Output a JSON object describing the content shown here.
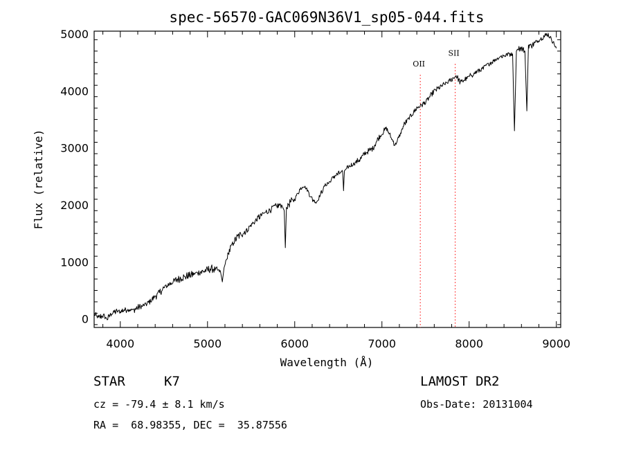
{
  "chart_data": {
    "type": "line",
    "title": "spec-56570-GAC069N36V1_sp05-044.fits",
    "xlabel": "Wavelength (Å)",
    "ylabel": "Flux (relative)",
    "xlim": [
      3700,
      9050
    ],
    "ylim": [
      -150,
      5050
    ],
    "xticks": [
      4000,
      5000,
      6000,
      7000,
      8000,
      9000
    ],
    "yticks": [
      0,
      1000,
      2000,
      3000,
      4000,
      5000
    ],
    "grid": false,
    "legend": "none",
    "line_color": "#000000",
    "marker_color": "#ff0000",
    "series": [
      {
        "x": [
          3700,
          3750,
          3800,
          3850,
          3900,
          3950,
          4000,
          4050,
          4100,
          4150,
          4200,
          4250,
          4300,
          4350,
          4400,
          4450,
          4500,
          4550,
          4600,
          4650,
          4700,
          4750,
          4800,
          4850,
          4900,
          4950,
          5000,
          5050,
          5100,
          5150,
          5170,
          5190,
          5210,
          5250,
          5300,
          5350,
          5400,
          5450,
          5500,
          5550,
          5600,
          5650,
          5700,
          5750,
          5800,
          5850,
          5880,
          5892,
          5905,
          5950,
          6000,
          6050,
          6100,
          6150,
          6200,
          6250,
          6300,
          6350,
          6400,
          6450,
          6500,
          6550,
          6560,
          6570,
          6600,
          6650,
          6700,
          6750,
          6800,
          6850,
          6900,
          6950,
          7000,
          7050,
          7100,
          7150,
          7200,
          7250,
          7300,
          7350,
          7400,
          7450,
          7500,
          7550,
          7600,
          7650,
          7700,
          7750,
          7800,
          7850,
          7900,
          7950,
          8000,
          8050,
          8100,
          8150,
          8200,
          8250,
          8300,
          8350,
          8400,
          8450,
          8498,
          8520,
          8542,
          8560,
          8600,
          8640,
          8662,
          8680,
          8720,
          8760,
          8800,
          8850,
          8900,
          8950,
          9000
        ],
        "y": [
          80,
          20,
          60,
          0,
          100,
          130,
          130,
          160,
          170,
          150,
          200,
          220,
          260,
          320,
          400,
          460,
          540,
          600,
          650,
          690,
          720,
          740,
          770,
          790,
          820,
          830,
          860,
          880,
          860,
          820,
          650,
          900,
          1000,
          1200,
          1350,
          1450,
          1500,
          1550,
          1650,
          1720,
          1800,
          1850,
          1900,
          1950,
          1980,
          2000,
          1900,
          1250,
          1950,
          2050,
          2100,
          2250,
          2350,
          2250,
          2100,
          2050,
          2200,
          2350,
          2400,
          2500,
          2550,
          2580,
          2250,
          2600,
          2650,
          2700,
          2750,
          2800,
          2900,
          2950,
          3000,
          3150,
          3250,
          3350,
          3200,
          3050,
          3200,
          3400,
          3500,
          3600,
          3700,
          3750,
          3800,
          3900,
          4000,
          4050,
          4100,
          4150,
          4200,
          4270,
          4150,
          4200,
          4250,
          4300,
          4350,
          4380,
          4450,
          4500,
          4550,
          4600,
          4620,
          4650,
          4650,
          3300,
          4700,
          4750,
          4750,
          4700,
          3650,
          4800,
          4800,
          4850,
          4900,
          4950,
          5000,
          4900,
          4750
        ]
      }
    ],
    "lines": [
      {
        "label": "OII",
        "x": 7440,
        "label_y": 4430
      },
      {
        "label": "SII",
        "x": 7840,
        "label_y": 4620
      }
    ]
  },
  "info": {
    "object_class": "STAR",
    "subclass": "K7",
    "cz": "cz = -79.4 ± 8.1 km/s",
    "coords": "RA =  68.98355, DEC =  35.87556",
    "survey": "LAMOST DR2",
    "obs_date": "Obs-Date: 20131004"
  }
}
